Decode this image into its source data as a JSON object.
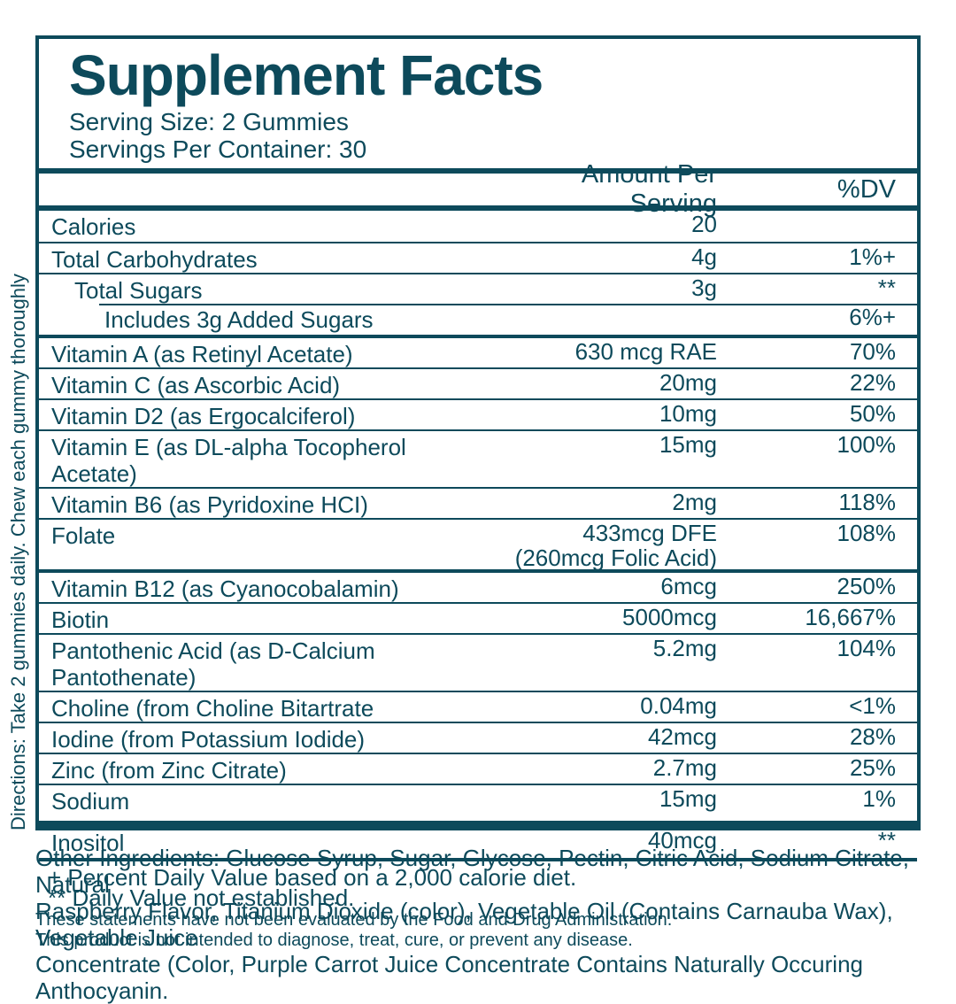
{
  "colors": {
    "ink": "#0d4a5b",
    "background": "#ffffff"
  },
  "directions": "Directions: Take 2 gummies daily. Chew each gummy thoroughly",
  "label": {
    "title": "Supplement Facts",
    "serving_size": "Serving Size: 2 Gummies",
    "servings_per_container": "Servings Per Container: 30",
    "header": {
      "amount": "Amount Per Serving",
      "dv": "%DV"
    },
    "rows": [
      {
        "name": "Calories",
        "amount": "20",
        "amount2": "",
        "dv": "",
        "indent": 0,
        "sep": "none",
        "tall": false
      },
      {
        "name": "Total Carbohydrates",
        "amount": "4g",
        "amount2": "",
        "dv": "1%+",
        "indent": 0,
        "sep": "thin",
        "tall": false
      },
      {
        "name": "Total Sugars",
        "amount": "3g",
        "amount2": "",
        "dv": "**",
        "indent": 1,
        "sep": "thin",
        "tall": false
      },
      {
        "name": "Includes 3g Added Sugars",
        "amount": "",
        "amount2": "",
        "dv": "6%+",
        "indent": 2,
        "sep": "indent",
        "tall": false
      },
      {
        "name": "Vitamin A (as Retinyl Acetate)",
        "amount": "630 mcg RAE",
        "amount2": "",
        "dv": "70%",
        "indent": 0,
        "sep": "thick",
        "tall": false
      },
      {
        "name": "Vitamin C (as Ascorbic Acid)",
        "amount": "20mg",
        "amount2": "",
        "dv": "22%",
        "indent": 0,
        "sep": "thin",
        "tall": false
      },
      {
        "name": "Vitamin D2 (as Ergocalciferol)",
        "amount": "10mg",
        "amount2": "",
        "dv": "50%",
        "indent": 0,
        "sep": "thin",
        "tall": false
      },
      {
        "name": "Vitamin E (as DL-alpha Tocopherol Acetate)",
        "amount": "15mg",
        "amount2": "",
        "dv": "100%",
        "indent": 0,
        "sep": "thin",
        "tall": false
      },
      {
        "name": "Vitamin B6 (as Pyridoxine HCI)",
        "amount": "2mg",
        "amount2": "",
        "dv": "118%",
        "indent": 0,
        "sep": "thin",
        "tall": false
      },
      {
        "name": "Folate",
        "amount": "433mcg DFE",
        "amount2": "(260mcg Folic Acid)",
        "dv": "108%",
        "indent": 0,
        "sep": "thin",
        "tall": false
      },
      {
        "name": "Vitamin B12 (as Cyanocobalamin)",
        "amount": "6mcg",
        "amount2": "",
        "dv": "250%",
        "indent": 0,
        "sep": "thick",
        "tall": false
      },
      {
        "name": "Biotin",
        "amount": "5000mcg",
        "amount2": "",
        "dv": "16,667%",
        "indent": 0,
        "sep": "thin",
        "tall": false
      },
      {
        "name": "Pantothenic Acid (as D-Calcium Pantothenate)",
        "amount": "5.2mg",
        "amount2": "",
        "dv": "104%",
        "indent": 0,
        "sep": "thin",
        "tall": false
      },
      {
        "name": "Choline (from Choline Bitartrate",
        "amount": "0.04mg",
        "amount2": "",
        "dv": "<1%",
        "indent": 0,
        "sep": "thin",
        "tall": false
      },
      {
        "name": "Iodine (from Potassium Iodide)",
        "amount": "42mcg",
        "amount2": "",
        "dv": "28%",
        "indent": 0,
        "sep": "thin",
        "tall": false
      },
      {
        "name": "Zinc (from Zinc Citrate)",
        "amount": "2.7mg",
        "amount2": "",
        "dv": "25%",
        "indent": 0,
        "sep": "thin",
        "tall": false
      },
      {
        "name": "Sodium",
        "amount": "15mg",
        "amount2": "",
        "dv": "1%",
        "indent": 0,
        "sep": "thin",
        "tall": true
      },
      {
        "name": "Inositol",
        "amount": "40mcg",
        "amount2": "",
        "dv": "**",
        "indent": 0,
        "sep": "xthick",
        "tall": true
      }
    ],
    "footnotes": [
      "+ Percent Daily Value based on a 2,000 calorie diet.",
      "** Daily Value not established."
    ]
  },
  "other_ingredients_lines": [
    "Other Ingredients: Glucose Syrup, Sugar, Glycose, Pectin, Citric Acid, Sodium Citrate, Natural",
    "Raspberry Flavor, Titanium Dioxide (color), Vegetable Oil (Contains Carnauba Wax), Vegetable Juice",
    "Concentrate (Color, Purple Carrot Juice Concentrate Contains Naturally Occuring Anthocyanin."
  ],
  "disclaimer_lines": [
    "These statements have not been evaluated by the Food and Drug Administration.",
    "This product is not intended to diagnose, treat, cure, or prevent any disease."
  ]
}
